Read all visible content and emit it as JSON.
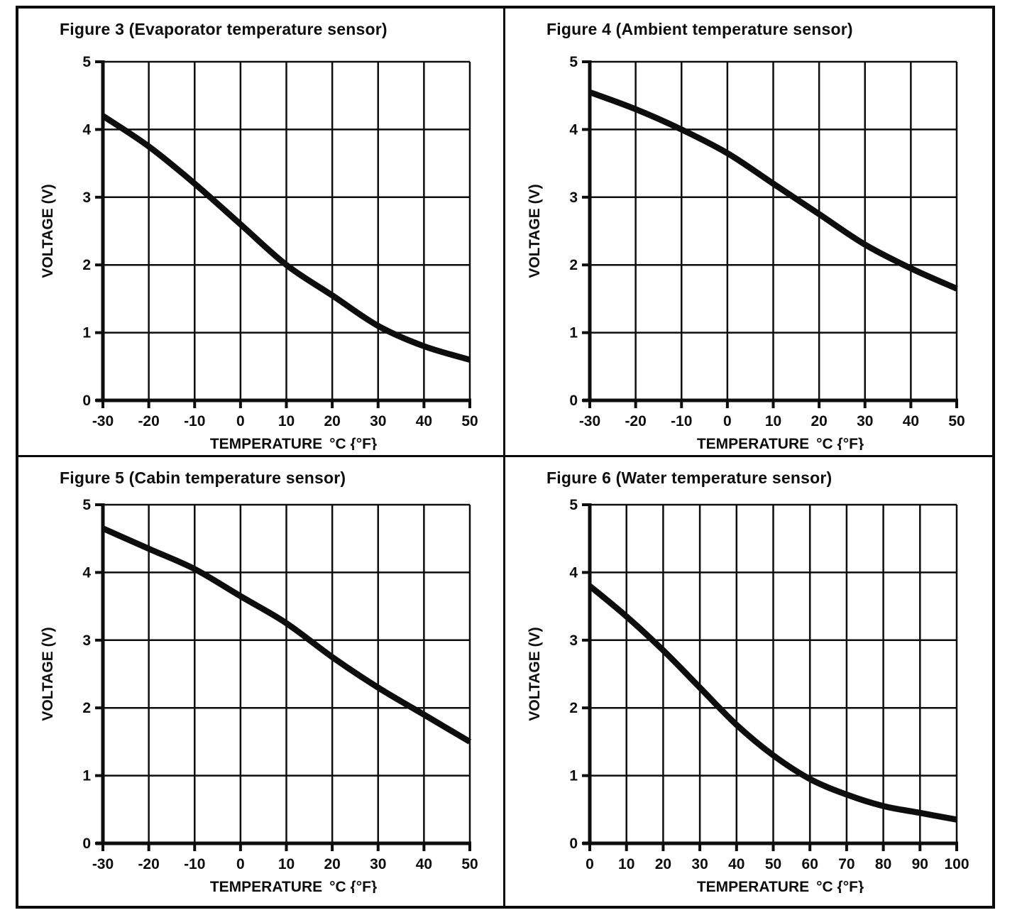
{
  "page": {
    "background": "#ffffff",
    "ink_color": "#0d0d0d",
    "description_texts": {
      "x_axis_label": "TEMPERATURE  °C {°F}",
      "y_axis_label": "VOLTAGE (V)"
    }
  },
  "chart_data": [
    {
      "id": "figure-3",
      "type": "line",
      "title": "Figure 3 (Evaporator temperature sensor)",
      "xlabel": "TEMPERATURE  °C {°F}",
      "ylabel": "VOLTAGE (V)",
      "xlim": [
        -30,
        50
      ],
      "ylim": [
        0,
        5
      ],
      "grid": true,
      "legend": "none",
      "x_ticks": [
        -30,
        -20,
        -10,
        0,
        10,
        20,
        30,
        40,
        50
      ],
      "y_ticks": [
        0,
        1,
        2,
        3,
        4,
        5
      ],
      "x": [
        -30,
        -20,
        -10,
        0,
        10,
        20,
        30,
        40,
        50
      ],
      "values": [
        4.2,
        3.75,
        3.2,
        2.6,
        2.0,
        1.55,
        1.1,
        0.8,
        0.6
      ]
    },
    {
      "id": "figure-4",
      "type": "line",
      "title": "Figure 4 (Ambient temperature sensor)",
      "xlabel": "TEMPERATURE  °C {°F}",
      "ylabel": "VOLTAGE (V)",
      "xlim": [
        -30,
        50
      ],
      "ylim": [
        0,
        5
      ],
      "grid": true,
      "legend": "none",
      "x_ticks": [
        -30,
        -20,
        -10,
        0,
        10,
        20,
        30,
        40,
        50
      ],
      "y_ticks": [
        0,
        1,
        2,
        3,
        4,
        5
      ],
      "x": [
        -30,
        -20,
        -10,
        0,
        10,
        20,
        30,
        40,
        50
      ],
      "values": [
        4.55,
        4.3,
        4.0,
        3.65,
        3.2,
        2.75,
        2.3,
        1.95,
        1.65
      ]
    },
    {
      "id": "figure-5",
      "type": "line",
      "title": "Figure 5 (Cabin temperature sensor)",
      "xlabel": "TEMPERATURE  °C {°F}",
      "ylabel": "VOLTAGE (V)",
      "xlim": [
        -30,
        50
      ],
      "ylim": [
        0,
        5
      ],
      "grid": true,
      "legend": "none",
      "x_ticks": [
        -30,
        -20,
        -10,
        0,
        10,
        20,
        30,
        40,
        50
      ],
      "y_ticks": [
        0,
        1,
        2,
        3,
        4,
        5
      ],
      "x": [
        -30,
        -20,
        -10,
        0,
        10,
        20,
        30,
        40,
        50
      ],
      "values": [
        4.65,
        4.35,
        4.05,
        3.65,
        3.25,
        2.75,
        2.3,
        1.9,
        1.5
      ]
    },
    {
      "id": "figure-6",
      "type": "line",
      "title": "Figure 6 (Water temperature sensor)",
      "xlabel": "TEMPERATURE  °C {°F}",
      "ylabel": "VOLTAGE (V)",
      "xlim": [
        0,
        100
      ],
      "ylim": [
        0,
        5
      ],
      "grid": true,
      "legend": "none",
      "x_ticks": [
        0,
        10,
        20,
        30,
        40,
        50,
        60,
        70,
        80,
        90,
        100
      ],
      "y_ticks": [
        0,
        1,
        2,
        3,
        4,
        5
      ],
      "x": [
        0,
        10,
        20,
        30,
        40,
        50,
        60,
        70,
        80,
        90,
        100
      ],
      "values": [
        3.8,
        3.35,
        2.85,
        2.3,
        1.75,
        1.3,
        0.95,
        0.72,
        0.55,
        0.45,
        0.35
      ]
    }
  ]
}
